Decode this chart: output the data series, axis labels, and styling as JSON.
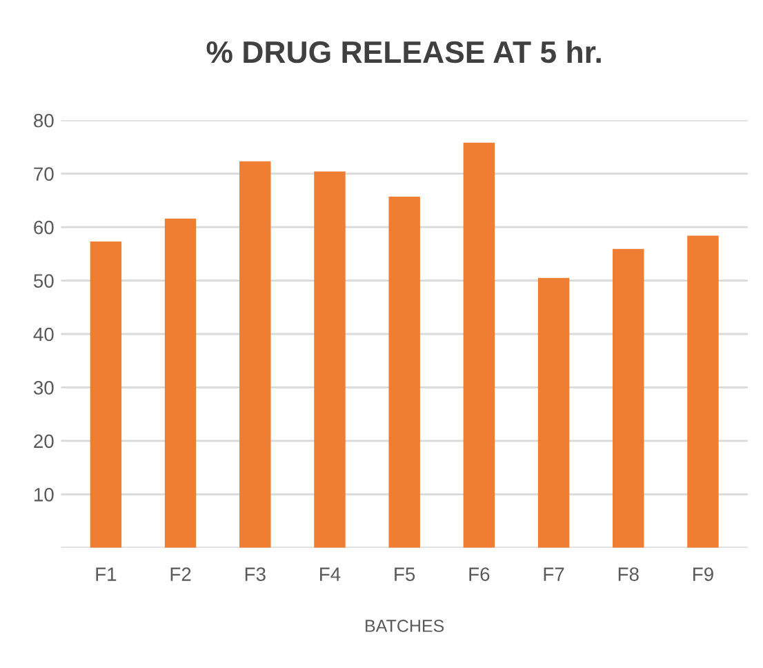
{
  "chart_data": {
    "type": "bar",
    "title": "% DRUG RELEASE AT 5 hr.",
    "xlabel": "BATCHES",
    "categories": [
      "F1",
      "F2",
      "F3",
      "F4",
      "F5",
      "F6",
      "F7",
      "F8",
      "F9"
    ],
    "values": [
      57.3,
      61.6,
      72.3,
      70.4,
      65.7,
      75.8,
      50.5,
      55.9,
      58.4
    ],
    "color": "#ef7d32",
    "ylim": [
      0,
      80
    ],
    "yticks": [
      {
        "value": 0,
        "label": null
      },
      10,
      20,
      30,
      40,
      50,
      60,
      70,
      80
    ],
    "grid": "y",
    "legend": false
  }
}
